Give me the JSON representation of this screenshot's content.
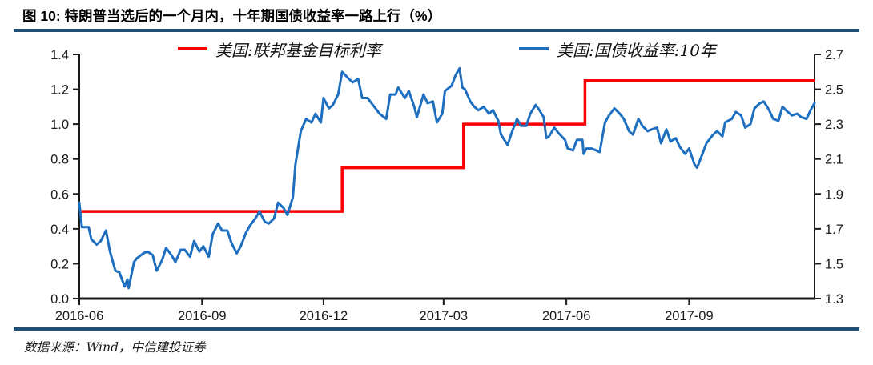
{
  "title": "图 10: 特朗普当选后的一个月内，十年期国债收益率一路上行（%）",
  "source": "数据来源：Wind，中信建投证券",
  "colors": {
    "rule": "#1F4E79",
    "axis": "#1a1a1a",
    "fed_line": "#FE0000",
    "treasury_line": "#1E6FC0"
  },
  "legend": [
    {
      "label": "美国:联邦基金目标利率",
      "color": "#FE0000"
    },
    {
      "label": "美国:国债收益率:10年",
      "color": "#1E6FC0"
    }
  ],
  "chart_data": {
    "type": "line",
    "title": "图 10: 特朗普当选后的一个月内，十年期国债收益率一路上行（%）",
    "grid": "off",
    "legend_position": "top",
    "x_axis": {
      "domain": [
        "2016-06-01",
        "2017-12-04"
      ],
      "ticks": [
        {
          "label": "2016-06",
          "date": "2016-06-01"
        },
        {
          "label": "2016-09",
          "date": "2016-09-01"
        },
        {
          "label": "2016-12",
          "date": "2016-12-01"
        },
        {
          "label": "2017-03",
          "date": "2017-03-01"
        },
        {
          "label": "2017-06",
          "date": "2017-06-01"
        },
        {
          "label": "2017-09",
          "date": "2017-09-01"
        }
      ]
    },
    "y_left": {
      "min": 0.0,
      "max": 1.4,
      "ticks": [
        "0.0",
        "0.2",
        "0.4",
        "0.6",
        "0.8",
        "1.0",
        "1.2",
        "1.4"
      ]
    },
    "y_right": {
      "min": 1.3,
      "max": 2.7,
      "ticks": [
        "1.3",
        "1.5",
        "1.7",
        "1.9",
        "2.1",
        "2.3",
        "2.5",
        "2.7"
      ]
    },
    "series": [
      {
        "name": "美国:联邦基金目标利率",
        "axis": "left",
        "color": "#FE0000",
        "type": "step",
        "stroke_width": 3.5,
        "points": [
          [
            "2016-06-01",
            0.5
          ],
          [
            "2016-12-15",
            0.75
          ],
          [
            "2017-03-16",
            1.0
          ],
          [
            "2017-06-15",
            1.25
          ],
          [
            "2017-12-04",
            1.25
          ]
        ]
      },
      {
        "name": "美国:国债收益率:10年",
        "axis": "right",
        "color": "#1E6FC0",
        "type": "line",
        "stroke_width": 3,
        "points": [
          [
            "2016-06-01",
            1.85
          ],
          [
            "2016-06-03",
            1.71
          ],
          [
            "2016-06-08",
            1.71
          ],
          [
            "2016-06-10",
            1.64
          ],
          [
            "2016-06-14",
            1.61
          ],
          [
            "2016-06-17",
            1.63
          ],
          [
            "2016-06-21",
            1.69
          ],
          [
            "2016-06-24",
            1.57
          ],
          [
            "2016-06-28",
            1.46
          ],
          [
            "2016-07-01",
            1.45
          ],
          [
            "2016-07-05",
            1.37
          ],
          [
            "2016-07-07",
            1.41
          ],
          [
            "2016-07-08",
            1.36
          ],
          [
            "2016-07-12",
            1.51
          ],
          [
            "2016-07-14",
            1.53
          ],
          [
            "2016-07-19",
            1.56
          ],
          [
            "2016-07-22",
            1.57
          ],
          [
            "2016-07-26",
            1.55
          ],
          [
            "2016-07-29",
            1.46
          ],
          [
            "2016-08-02",
            1.52
          ],
          [
            "2016-08-05",
            1.59
          ],
          [
            "2016-08-09",
            1.55
          ],
          [
            "2016-08-12",
            1.51
          ],
          [
            "2016-08-16",
            1.58
          ],
          [
            "2016-08-19",
            1.58
          ],
          [
            "2016-08-23",
            1.54
          ],
          [
            "2016-08-26",
            1.63
          ],
          [
            "2016-08-30",
            1.57
          ],
          [
            "2016-09-02",
            1.6
          ],
          [
            "2016-09-06",
            1.54
          ],
          [
            "2016-09-09",
            1.67
          ],
          [
            "2016-09-13",
            1.73
          ],
          [
            "2016-09-16",
            1.69
          ],
          [
            "2016-09-20",
            1.69
          ],
          [
            "2016-09-23",
            1.62
          ],
          [
            "2016-09-27",
            1.56
          ],
          [
            "2016-09-30",
            1.6
          ],
          [
            "2016-10-04",
            1.68
          ],
          [
            "2016-10-07",
            1.72
          ],
          [
            "2016-10-11",
            1.76
          ],
          [
            "2016-10-14",
            1.8
          ],
          [
            "2016-10-18",
            1.74
          ],
          [
            "2016-10-21",
            1.73
          ],
          [
            "2016-10-25",
            1.76
          ],
          [
            "2016-10-28",
            1.85
          ],
          [
            "2016-11-01",
            1.82
          ],
          [
            "2016-11-04",
            1.78
          ],
          [
            "2016-11-08",
            1.88
          ],
          [
            "2016-11-10",
            2.07
          ],
          [
            "2016-11-14",
            2.26
          ],
          [
            "2016-11-18",
            2.33
          ],
          [
            "2016-11-22",
            2.31
          ],
          [
            "2016-11-25",
            2.36
          ],
          [
            "2016-11-29",
            2.31
          ],
          [
            "2016-12-01",
            2.45
          ],
          [
            "2016-12-05",
            2.39
          ],
          [
            "2016-12-08",
            2.41
          ],
          [
            "2016-12-12",
            2.47
          ],
          [
            "2016-12-15",
            2.6
          ],
          [
            "2016-12-20",
            2.56
          ],
          [
            "2016-12-23",
            2.54
          ],
          [
            "2016-12-27",
            2.56
          ],
          [
            "2016-12-30",
            2.45
          ],
          [
            "2017-01-03",
            2.45
          ],
          [
            "2017-01-06",
            2.42
          ],
          [
            "2017-01-10",
            2.38
          ],
          [
            "2017-01-12",
            2.36
          ],
          [
            "2017-01-17",
            2.33
          ],
          [
            "2017-01-20",
            2.47
          ],
          [
            "2017-01-24",
            2.47
          ],
          [
            "2017-01-26",
            2.51
          ],
          [
            "2017-01-31",
            2.45
          ],
          [
            "2017-02-03",
            2.49
          ],
          [
            "2017-02-07",
            2.4
          ],
          [
            "2017-02-09",
            2.34
          ],
          [
            "2017-02-14",
            2.47
          ],
          [
            "2017-02-17",
            2.42
          ],
          [
            "2017-02-21",
            2.43
          ],
          [
            "2017-02-24",
            2.31
          ],
          [
            "2017-02-28",
            2.36
          ],
          [
            "2017-03-02",
            2.49
          ],
          [
            "2017-03-07",
            2.52
          ],
          [
            "2017-03-10",
            2.58
          ],
          [
            "2017-03-13",
            2.62
          ],
          [
            "2017-03-15",
            2.51
          ],
          [
            "2017-03-17",
            2.5
          ],
          [
            "2017-03-21",
            2.43
          ],
          [
            "2017-03-24",
            2.4
          ],
          [
            "2017-03-27",
            2.38
          ],
          [
            "2017-03-31",
            2.4
          ],
          [
            "2017-04-04",
            2.36
          ],
          [
            "2017-04-07",
            2.38
          ],
          [
            "2017-04-11",
            2.32
          ],
          [
            "2017-04-13",
            2.24
          ],
          [
            "2017-04-18",
            2.18
          ],
          [
            "2017-04-21",
            2.25
          ],
          [
            "2017-04-25",
            2.33
          ],
          [
            "2017-04-28",
            2.29
          ],
          [
            "2017-05-02",
            2.29
          ],
          [
            "2017-05-05",
            2.36
          ],
          [
            "2017-05-09",
            2.41
          ],
          [
            "2017-05-11",
            2.39
          ],
          [
            "2017-05-15",
            2.34
          ],
          [
            "2017-05-17",
            2.22
          ],
          [
            "2017-05-19",
            2.23
          ],
          [
            "2017-05-23",
            2.28
          ],
          [
            "2017-05-26",
            2.25
          ],
          [
            "2017-05-31",
            2.21
          ],
          [
            "2017-06-02",
            2.16
          ],
          [
            "2017-06-06",
            2.15
          ],
          [
            "2017-06-09",
            2.21
          ],
          [
            "2017-06-13",
            2.21
          ],
          [
            "2017-06-14",
            2.13
          ],
          [
            "2017-06-16",
            2.16
          ],
          [
            "2017-06-20",
            2.16
          ],
          [
            "2017-06-23",
            2.15
          ],
          [
            "2017-06-26",
            2.14
          ],
          [
            "2017-06-29",
            2.27
          ],
          [
            "2017-06-30",
            2.31
          ],
          [
            "2017-07-03",
            2.35
          ],
          [
            "2017-07-07",
            2.39
          ],
          [
            "2017-07-11",
            2.36
          ],
          [
            "2017-07-14",
            2.33
          ],
          [
            "2017-07-18",
            2.26
          ],
          [
            "2017-07-21",
            2.24
          ],
          [
            "2017-07-25",
            2.33
          ],
          [
            "2017-07-28",
            2.29
          ],
          [
            "2017-08-01",
            2.26
          ],
          [
            "2017-08-04",
            2.27
          ],
          [
            "2017-08-08",
            2.28
          ],
          [
            "2017-08-11",
            2.19
          ],
          [
            "2017-08-15",
            2.27
          ],
          [
            "2017-08-18",
            2.2
          ],
          [
            "2017-08-22",
            2.22
          ],
          [
            "2017-08-25",
            2.17
          ],
          [
            "2017-08-29",
            2.13
          ],
          [
            "2017-09-01",
            2.16
          ],
          [
            "2017-09-05",
            2.07
          ],
          [
            "2017-09-07",
            2.05
          ],
          [
            "2017-09-11",
            2.13
          ],
          [
            "2017-09-14",
            2.19
          ],
          [
            "2017-09-19",
            2.24
          ],
          [
            "2017-09-22",
            2.26
          ],
          [
            "2017-09-26",
            2.23
          ],
          [
            "2017-09-28",
            2.31
          ],
          [
            "2017-10-03",
            2.33
          ],
          [
            "2017-10-06",
            2.37
          ],
          [
            "2017-10-10",
            2.35
          ],
          [
            "2017-10-13",
            2.28
          ],
          [
            "2017-10-17",
            2.3
          ],
          [
            "2017-10-20",
            2.39
          ],
          [
            "2017-10-24",
            2.42
          ],
          [
            "2017-10-27",
            2.43
          ],
          [
            "2017-10-31",
            2.38
          ],
          [
            "2017-11-03",
            2.33
          ],
          [
            "2017-11-07",
            2.32
          ],
          [
            "2017-11-10",
            2.4
          ],
          [
            "2017-11-14",
            2.37
          ],
          [
            "2017-11-17",
            2.35
          ],
          [
            "2017-11-21",
            2.36
          ],
          [
            "2017-11-24",
            2.34
          ],
          [
            "2017-11-28",
            2.33
          ],
          [
            "2017-12-01",
            2.38
          ],
          [
            "2017-12-04",
            2.42
          ]
        ]
      }
    ]
  }
}
